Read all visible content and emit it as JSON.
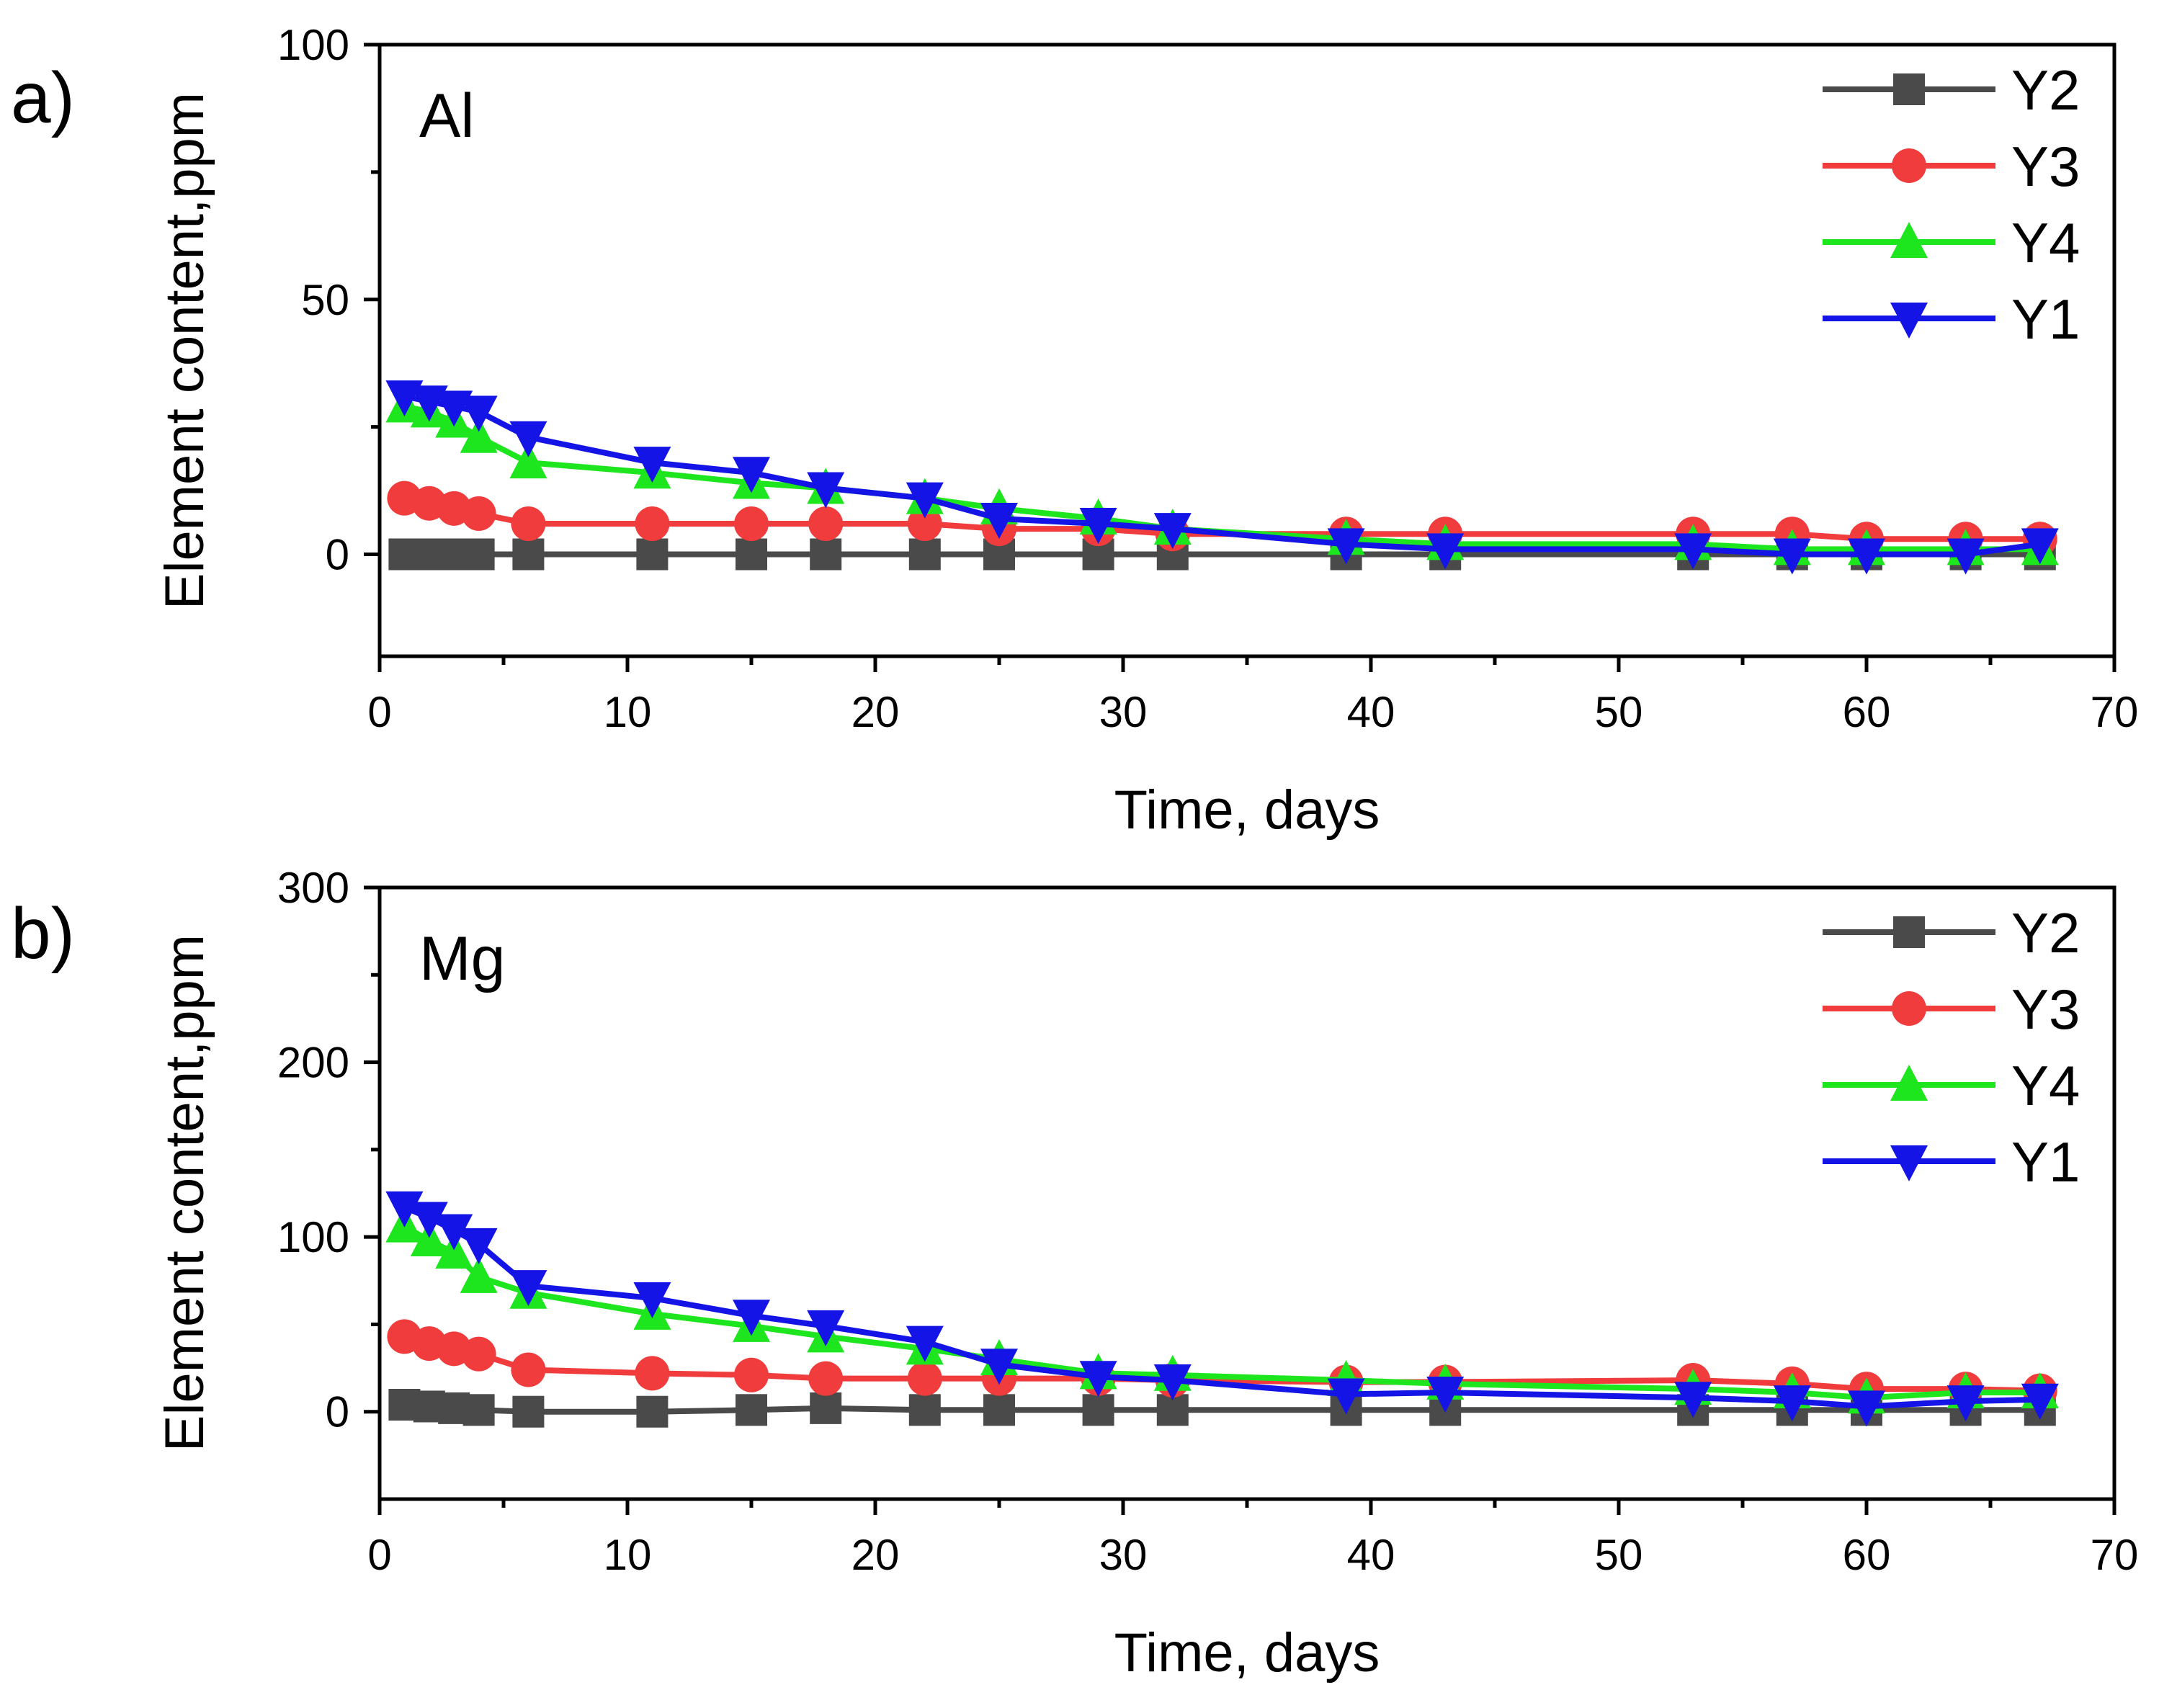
{
  "chart_data": [
    {
      "type": "line",
      "panel_label": "a)",
      "title": "Al",
      "xlabel": "Time, days",
      "ylabel": "Element content,ppm",
      "xlim": [
        0,
        70
      ],
      "ylim": [
        -20,
        100
      ],
      "xticks": [
        0,
        10,
        20,
        30,
        40,
        50,
        60,
        70
      ],
      "yticks": [
        0,
        50,
        100
      ],
      "legend_position": "top-right",
      "x": [
        1,
        2,
        3,
        4,
        6,
        11,
        15,
        18,
        22,
        25,
        29,
        32,
        39,
        43,
        53,
        57,
        60,
        64,
        67
      ],
      "series": [
        {
          "name": "Y2",
          "color": "#4a4a4a",
          "marker": "square",
          "values": [
            0,
            0,
            0,
            0,
            0,
            0,
            0,
            0,
            0,
            0,
            0,
            0,
            0,
            0,
            0,
            0,
            0,
            0,
            0
          ]
        },
        {
          "name": "Y3",
          "color": "#f03c3c",
          "marker": "circle",
          "values": [
            11,
            10,
            9,
            8,
            6,
            6,
            6,
            6,
            6,
            5,
            5,
            4,
            4,
            4,
            4,
            4,
            3,
            3,
            3
          ]
        },
        {
          "name": "Y4",
          "color": "#1ee61e",
          "marker": "triangle-up",
          "values": [
            29,
            28,
            26,
            23,
            18,
            16,
            14,
            13,
            11,
            9,
            7,
            5,
            3,
            2,
            2,
            1,
            1,
            1,
            1
          ]
        },
        {
          "name": "Y1",
          "color": "#1414e6",
          "marker": "triangle-down",
          "values": [
            31,
            30,
            29,
            28,
            23,
            18,
            16,
            13,
            11,
            7,
            6,
            5,
            2,
            1,
            1,
            0,
            0,
            0,
            2
          ]
        }
      ]
    },
    {
      "type": "line",
      "panel_label": "b)",
      "title": "Mg",
      "xlabel": "Time, days",
      "ylabel": "Element content,ppm",
      "xlim": [
        0,
        70
      ],
      "ylim": [
        -50,
        300
      ],
      "xticks": [
        0,
        10,
        20,
        30,
        40,
        50,
        60,
        70
      ],
      "yticks": [
        0,
        100,
        200,
        300
      ],
      "legend_position": "top-right",
      "x": [
        1,
        2,
        3,
        4,
        6,
        11,
        15,
        18,
        22,
        25,
        29,
        32,
        39,
        43,
        53,
        57,
        60,
        64,
        67
      ],
      "series": [
        {
          "name": "Y2",
          "color": "#4a4a4a",
          "marker": "square",
          "values": [
            4,
            3,
            2,
            1,
            0,
            0,
            1,
            2,
            1,
            1,
            1,
            1,
            1,
            1,
            1,
            1,
            1,
            1,
            1
          ]
        },
        {
          "name": "Y3",
          "color": "#f03c3c",
          "marker": "circle",
          "values": [
            43,
            39,
            36,
            33,
            24,
            22,
            21,
            19,
            19,
            19,
            19,
            18,
            17,
            17,
            18,
            16,
            13,
            13,
            12
          ]
        },
        {
          "name": "Y4",
          "color": "#1ee61e",
          "marker": "triangle-up",
          "values": [
            106,
            98,
            91,
            77,
            68,
            56,
            49,
            43,
            36,
            30,
            22,
            21,
            18,
            16,
            13,
            11,
            8,
            11,
            11
          ]
        },
        {
          "name": "Y1",
          "color": "#1414e6",
          "marker": "triangle-down",
          "values": [
            117,
            111,
            104,
            96,
            72,
            65,
            55,
            49,
            40,
            27,
            20,
            18,
            10,
            11,
            8,
            6,
            3,
            6,
            7
          ]
        }
      ]
    }
  ]
}
